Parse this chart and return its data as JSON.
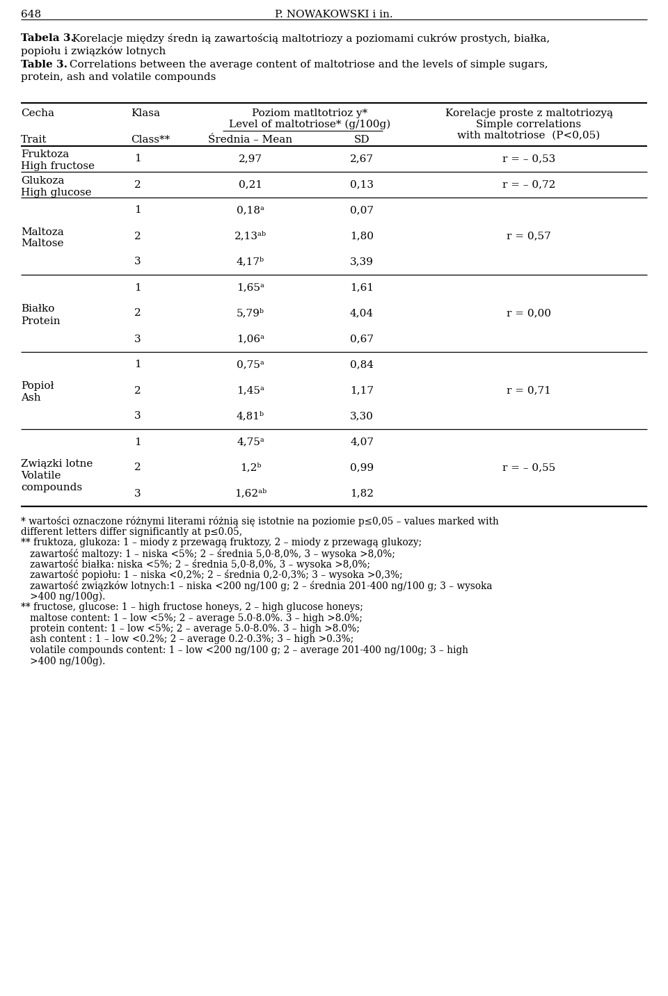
{
  "page_number": "648",
  "page_header": "P. NOWAKOWSKI i in.",
  "bg_color": "#ffffff",
  "text_color": "#000000",
  "line_color": "#000000",
  "font_family": "DejaVu Serif",
  "font_size_body": 11.0,
  "font_size_small": 9.8,
  "groups": [
    {
      "trait_pl": "Fruktoza",
      "trait_en": "High fructose",
      "trait_en2": null,
      "rows": [
        {
          "class": "1",
          "mean": "2,97",
          "sd": "2,67"
        }
      ],
      "corr": "r = – 0,53",
      "corr_row": 0
    },
    {
      "trait_pl": "Glukoza",
      "trait_en": "High glucose",
      "trait_en2": null,
      "rows": [
        {
          "class": "2",
          "mean": "0,21",
          "sd": "0,13"
        }
      ],
      "corr": "r = – 0,72",
      "corr_row": 0
    },
    {
      "trait_pl": "Maltoza",
      "trait_en": "Maltose",
      "trait_en2": null,
      "rows": [
        {
          "class": "1",
          "mean": "0,18ᵃ",
          "sd": "0,07"
        },
        {
          "class": "2",
          "mean": "2,13ᵃᵇ",
          "sd": "1,80"
        },
        {
          "class": "3",
          "mean": "4,17ᵇ",
          "sd": "3,39"
        }
      ],
      "corr": "r = 0,57",
      "corr_row": 1
    },
    {
      "trait_pl": "Białko",
      "trait_en": "Protein",
      "trait_en2": null,
      "rows": [
        {
          "class": "1",
          "mean": "1,65ᵃ",
          "sd": "1,61"
        },
        {
          "class": "2",
          "mean": "5,79ᵇ",
          "sd": "4,04"
        },
        {
          "class": "3",
          "mean": "1,06ᵃ",
          "sd": "0,67"
        }
      ],
      "corr": "r = 0,00",
      "corr_row": 1
    },
    {
      "trait_pl": "Popioł",
      "trait_en": "Ash",
      "trait_en2": null,
      "rows": [
        {
          "class": "1",
          "mean": "0,75ᵃ",
          "sd": "0,84"
        },
        {
          "class": "2",
          "mean": "1,45ᵃ",
          "sd": "1,17"
        },
        {
          "class": "3",
          "mean": "4,81ᵇ",
          "sd": "3,30"
        }
      ],
      "corr": "r = 0,71",
      "corr_row": 1
    },
    {
      "trait_pl": "Związki lotne",
      "trait_en": "Volatile",
      "trait_en2": "compounds",
      "rows": [
        {
          "class": "1",
          "mean": "4,75ᵃ",
          "sd": "4,07"
        },
        {
          "class": "2",
          "mean": "1,2ᵇ",
          "sd": "0,99"
        },
        {
          "class": "3",
          "mean": "1,62ᵃᵇ",
          "sd": "1,82"
        }
      ],
      "corr": "r = – 0,55",
      "corr_row": 1
    }
  ],
  "footnotes": [
    {
      "text": "* wartości oznaczone różnymi literami różnią się istotnie na poziomie p≤0,05 – values marked with",
      "indent": 0
    },
    {
      "text": "different letters differ significantly at p≤0.05,",
      "indent": 0
    },
    {
      "text": "** fruktoza, glukoza: 1 – miody z przewagą fruktozy, 2 – miody z przewagą glukozy;",
      "indent": 0
    },
    {
      "text": "   zawartość maltozy: 1 – niska <5%; 2 – średnia 5,0-8,0%, 3 – wysoka >8,0%;",
      "indent": 1
    },
    {
      "text": "   zawartość białka: niska <5%; 2 – średnia 5,0-8,0%, 3 – wysoka >8,0%;",
      "indent": 1
    },
    {
      "text": "   zawartość popiołu: 1 – niska <0,2%; 2 – średnia 0,2-0,3%; 3 – wysoka >0,3%;",
      "indent": 1
    },
    {
      "text": "   zawartość związków lotnych:1 – niska <200 ng/100 g; 2 – średnia 201-400 ng/100 g; 3 – wysoka",
      "indent": 1
    },
    {
      "text": "   >400 ng/100g).",
      "indent": 1
    },
    {
      "text": "** fructose, glucose: 1 – high fructose honeys, 2 – high glucose honeys;",
      "indent": 0
    },
    {
      "text": "   maltose content: 1 – low <5%; 2 – average 5.0-8.0%. 3 – high >8.0%;",
      "indent": 1
    },
    {
      "text": "   protein content: 1 – low <5%; 2 – average 5.0-8.0%. 3 – high >8.0%;",
      "indent": 1
    },
    {
      "text": "   ash content : 1 – low <0.2%; 2 – average 0.2-0.3%; 3 – high >0.3%;",
      "indent": 1
    },
    {
      "text": "   volatile compounds content: 1 – low <200 ng/100 g; 2 – average 201-400 ng/100g; 3 – high",
      "indent": 1
    },
    {
      "text": "   >400 ng/100g).",
      "indent": 1
    }
  ]
}
